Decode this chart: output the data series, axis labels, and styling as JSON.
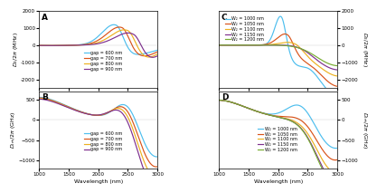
{
  "wavelength_range": [
    1000,
    3000
  ],
  "colors_AB": [
    "#4DBEEE",
    "#D95319",
    "#EDB120",
    "#7E2F8E"
  ],
  "colors_CD": [
    "#4DBEEE",
    "#D95319",
    "#EDB120",
    "#7E2F8E",
    "#77AC30"
  ],
  "legend_AB": [
    "gap = 600 nm",
    "gap = 700 nm",
    "gap = 800 nm",
    "gap = 900 nm"
  ],
  "legend_CD": [
    "W₂ = 1000 nm",
    "W₂ = 1050 nm",
    "W₂ = 1100 nm",
    "W₂ = 1150 nm",
    "W₂ = 1200 nm"
  ],
  "panel_labels": [
    "A",
    "B",
    "C",
    "D"
  ],
  "ylabel_A": "$D_2/2\\pi$ (MHz)",
  "ylabel_B": "$D_{\\mathrm{int}}/2\\pi$ (GHz)",
  "ylabel_C": "$D_2/2\\pi$ (MHz)",
  "ylabel_D": "$D_{\\mathrm{int}}/2\\pi$ (GHz)",
  "xlabel": "Wavelength (nm)",
  "ylim_A": [
    -2500,
    2000
  ],
  "ylim_B": [
    -1200,
    700
  ],
  "ylim_C": [
    -2500,
    2000
  ],
  "ylim_D": [
    -1200,
    700
  ],
  "background": "#ffffff"
}
